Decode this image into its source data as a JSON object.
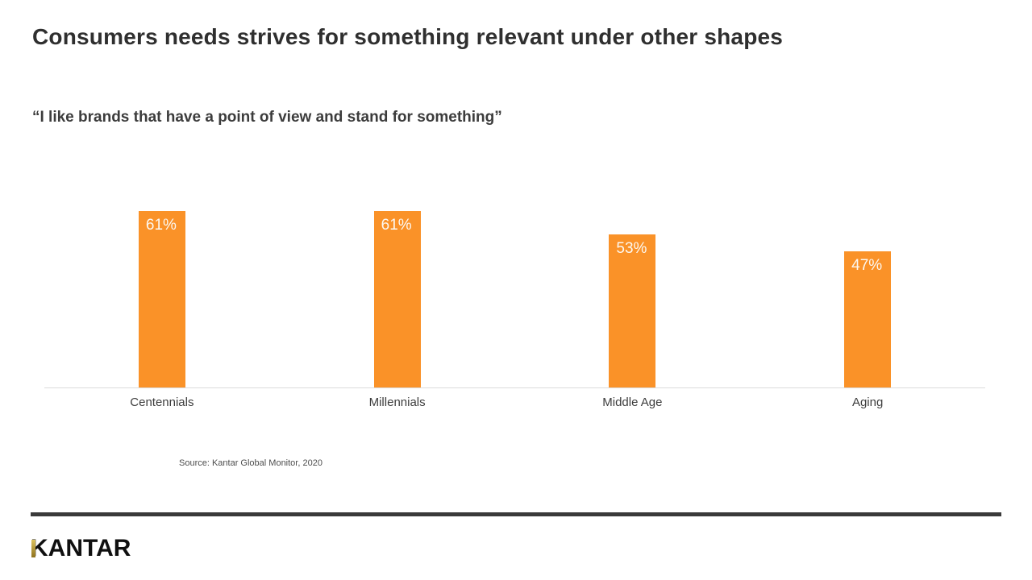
{
  "title": "Consumers needs strives for something relevant under other shapes",
  "subtitle": "“I like brands that have a point of view and stand for something”",
  "source": "Source: Kantar Global Monitor, 2020",
  "logo": {
    "text": "KANTAR"
  },
  "colors": {
    "bar": "#FA9228",
    "value_label": "#FCF8F1",
    "title": "#2F2F2F",
    "category_label": "#3D3D3D",
    "divider": "#3A3A3A",
    "axis": "#DBDBDB",
    "logo_gold_top": "#DCC35E",
    "logo_gold_bottom": "#8F721E"
  },
  "chart_data": {
    "type": "bar",
    "categories": [
      "Centennials",
      "Millennials",
      "Middle Age",
      "Aging"
    ],
    "values": [
      61,
      61,
      53,
      47
    ],
    "labels": [
      "61%",
      "61%",
      "53%",
      "47%"
    ],
    "unit": "%",
    "title": "“I like brands that have a point of view and stand for something”",
    "xlabel": "",
    "ylabel": "",
    "ylim": [
      0,
      100
    ],
    "grid": false,
    "legend": null,
    "bar_color": "#FA9228",
    "value_label_position": "inside-top-left",
    "value_label_color": "#FFFFFF",
    "baseline_axis": true
  }
}
